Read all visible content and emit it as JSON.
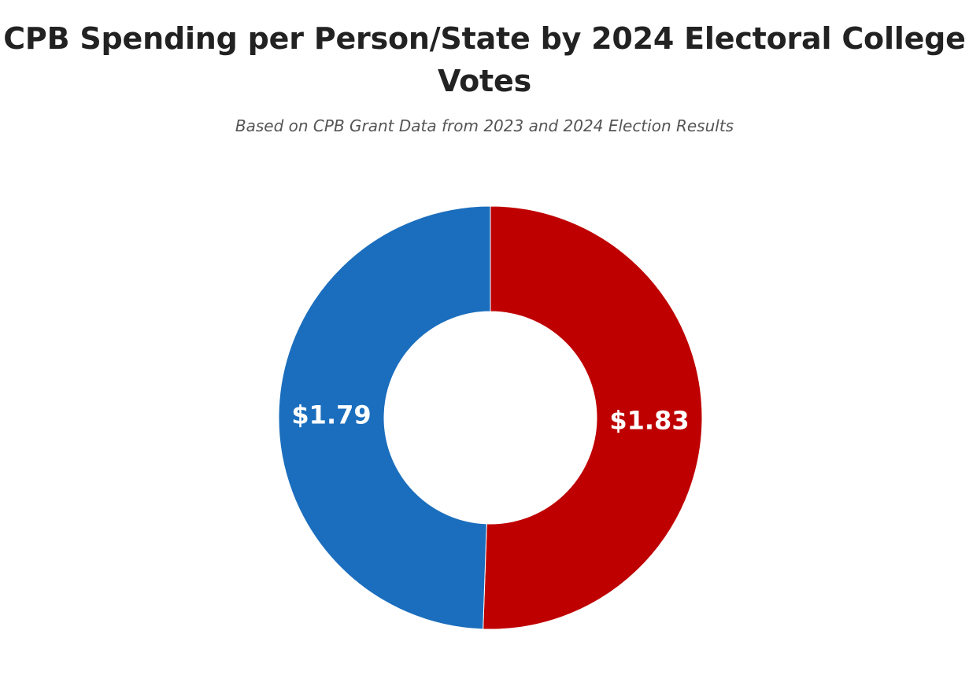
{
  "chart_data": {
    "type": "pie",
    "title_lines": [
      "CPB Spending per Person/State by 2024 Electoral College",
      "Votes"
    ],
    "subtitle": "Based on CPB Grant Data from 2023 and 2024 Election Results",
    "donut": true,
    "start_angle_deg": 0,
    "direction": "clockwise",
    "slices": [
      {
        "value": 1.83,
        "label": "$1.83",
        "color": "#bf0000"
      },
      {
        "value": 1.79,
        "label": "$1.79",
        "color": "#1b6ebd"
      }
    ],
    "legend": "none"
  }
}
